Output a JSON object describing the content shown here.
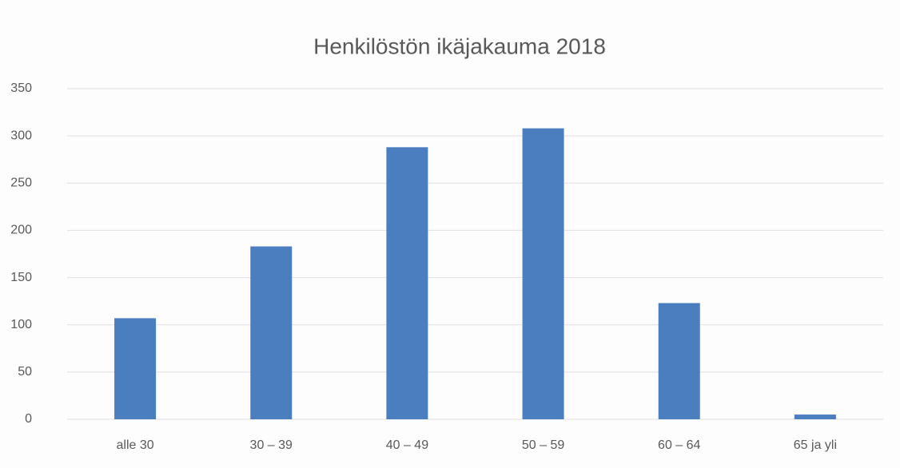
{
  "chart_data": {
    "type": "bar",
    "title": "Henkilöstön ikäjakauma 2018",
    "categories": [
      "alle 30",
      "30 – 39",
      "40 – 49",
      "50 – 59",
      "60 – 64",
      "65 ja yli"
    ],
    "values": [
      107,
      183,
      288,
      308,
      123,
      5
    ],
    "color": "#4a7ebf",
    "ylim": [
      0,
      350
    ],
    "yticks": [
      0,
      50,
      100,
      150,
      200,
      250,
      300,
      350
    ],
    "grid": true
  }
}
